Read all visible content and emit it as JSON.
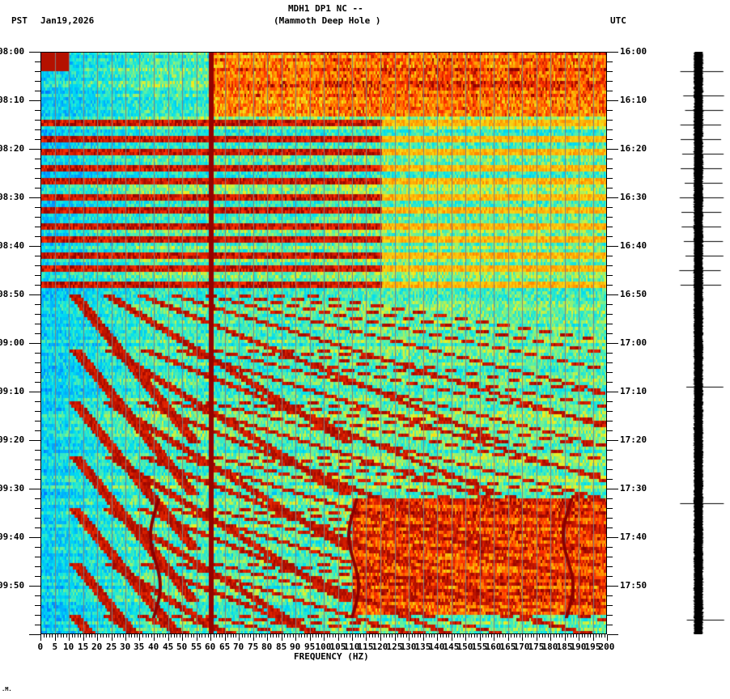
{
  "header": {
    "station_line": "MDH1 DP1 NC --",
    "location_line": "(Mammoth Deep Hole )",
    "left_timezone": "PST",
    "date": "Jan19,2026",
    "right_timezone": "UTC"
  },
  "footer": {
    "x_axis_label": "FREQUENCY (HZ)",
    "corner_mark": ".M."
  },
  "colors": {
    "background": "#ffffff",
    "colormap": [
      "#0050ff",
      "#00a0ff",
      "#00e0f0",
      "#60f0a0",
      "#f0f020",
      "#ffa000",
      "#ff3000",
      "#8b0000"
    ],
    "gridline": "#808080",
    "seismogram": "#000000"
  },
  "chart_data": {
    "type": "heatmap",
    "title": "MDH1 DP1 NC -- (Mammoth Deep Hole )",
    "subtitle": "Jan19,2026",
    "xlabel": "FREQUENCY (HZ)",
    "ylabel_left": "PST",
    "ylabel_right": "UTC",
    "xlim": [
      0,
      200
    ],
    "x_ticks": [
      0,
      5,
      10,
      15,
      20,
      25,
      30,
      35,
      40,
      45,
      50,
      55,
      60,
      65,
      70,
      75,
      80,
      85,
      90,
      95,
      100,
      105,
      110,
      115,
      120,
      125,
      130,
      135,
      140,
      145,
      150,
      155,
      160,
      165,
      170,
      175,
      180,
      185,
      190,
      195,
      200
    ],
    "y_ticks_left": [
      "08:00",
      "08:10",
      "08:20",
      "08:30",
      "08:40",
      "08:50",
      "09:00",
      "09:10",
      "09:20",
      "09:30",
      "09:40",
      "09:50"
    ],
    "y_ticks_right": [
      "16:00",
      "16:10",
      "16:20",
      "16:30",
      "16:40",
      "16:50",
      "17:00",
      "17:10",
      "17:20",
      "17:30",
      "17:40",
      "17:50"
    ],
    "time_range_minutes": 120,
    "features": {
      "persistent_line_hz": 60,
      "vertical_gridlines_every_hz": 5,
      "horizontal_broadband_bands_pst": [
        "08:03",
        "08:09",
        "08:12",
        "08:15",
        "08:18",
        "08:21",
        "08:24",
        "08:27",
        "08:30",
        "08:33",
        "08:36",
        "08:39",
        "08:42",
        "08:45",
        "08:48"
      ],
      "high_energy_period_pst": [
        "08:00",
        "08:13"
      ],
      "elevated_noise_period_pst": [
        "09:32",
        "09:56"
      ],
      "gliding_harmonic_tremor": true
    },
    "seismogram_marks_pst": [
      "08:04",
      "08:09",
      "08:12",
      "08:15",
      "08:18",
      "08:21",
      "08:24",
      "08:27",
      "08:30",
      "08:33",
      "08:36",
      "08:39",
      "08:42",
      "08:45",
      "08:48",
      "09:09",
      "09:33",
      "09:57"
    ]
  }
}
